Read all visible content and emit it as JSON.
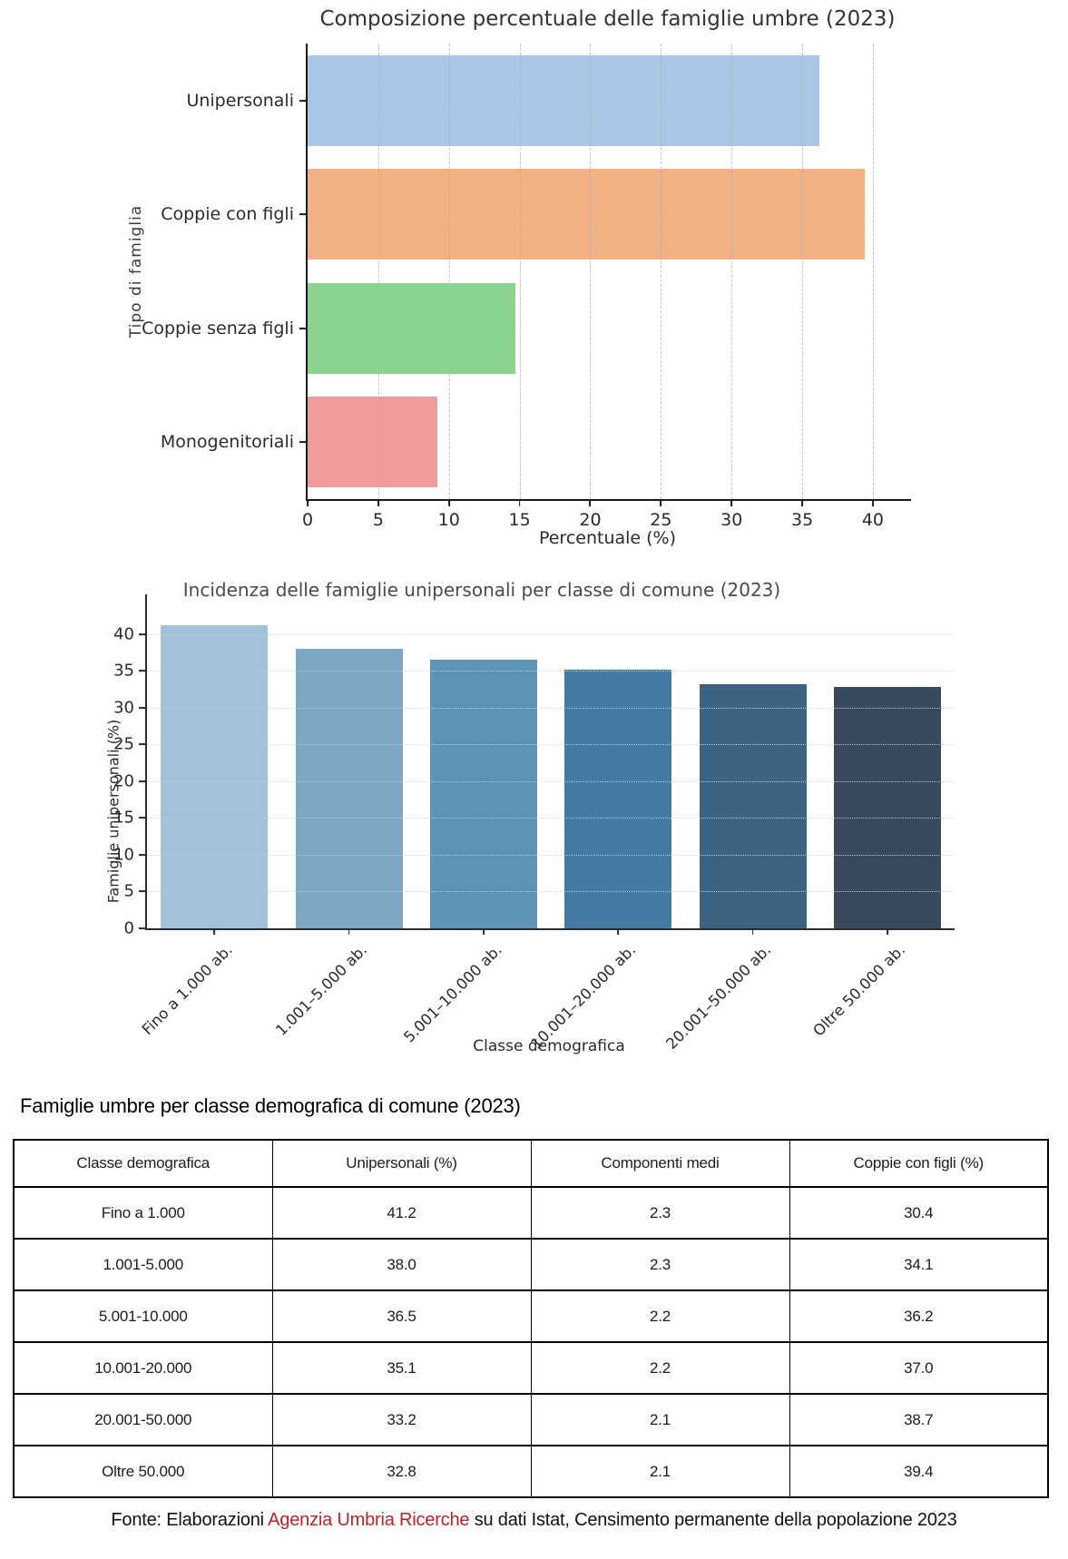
{
  "chart_data": [
    {
      "type": "bar",
      "orientation": "horizontal",
      "title": "Composizione percentuale delle famiglie umbre (2023)",
      "xlabel": "Percentuale (%)",
      "ylabel": "Tipo di famiglia",
      "categories": [
        "Unipersonali",
        "Coppie con figli",
        "Coppie senza figli",
        "Monogenitoriali"
      ],
      "values": [
        36.2,
        39.4,
        14.7,
        9.2
      ],
      "colors": [
        "#a8c6e6",
        "#f1b183",
        "#8bd391",
        "#f09c9a"
      ],
      "xticks": [
        0,
        5,
        10,
        15,
        20,
        25,
        30,
        35,
        40
      ],
      "xlim": [
        0,
        42.7
      ],
      "grid": "vertical-dashed",
      "legend": "none"
    },
    {
      "type": "bar",
      "orientation": "vertical",
      "title": "Incidenza delle famiglie unipersonali per classe di comune (2023)",
      "xlabel": "Classe demografica",
      "ylabel": "Famiglie unipersonali (%)",
      "categories": [
        "Fino a 1.000 ab.",
        "1.001–5.000 ab.",
        "5.001–10.000 ab.",
        "10.001–20.000 ab.",
        "20.001–50.000 ab.",
        "Oltre 50.000 ab."
      ],
      "values": [
        41.2,
        38.0,
        36.5,
        35.1,
        33.2,
        32.8
      ],
      "colors": [
        "#a2c2d9",
        "#7da8c5",
        "#5e93b6",
        "#447aa1",
        "#3d6383",
        "#394a5c"
      ],
      "yticks": [
        0,
        5,
        10,
        15,
        20,
        25,
        30,
        35,
        40
      ],
      "ylim": [
        0,
        45.4
      ],
      "grid": "horizontal-dotted",
      "legend": "none"
    },
    {
      "type": "table",
      "title": "Famiglie umbre per classe demografica di comune (2023)",
      "columns": [
        "Classe demografica",
        "Unipersonali (%)",
        "Componenti medi",
        "Coppie con figli (%)"
      ],
      "rows": [
        [
          "Fino a 1.000",
          "41.2",
          "2.3",
          "30.4"
        ],
        [
          "1.001-5.000",
          "38.0",
          "2.3",
          "34.1"
        ],
        [
          "5.001-10.000",
          "36.5",
          "2.2",
          "36.2"
        ],
        [
          "10.001-20.000",
          "35.1",
          "2.2",
          "37.0"
        ],
        [
          "20.001-50.000",
          "33.2",
          "2.1",
          "38.7"
        ],
        [
          "Oltre 50.000",
          "32.8",
          "2.1",
          "39.4"
        ]
      ]
    }
  ],
  "footer": {
    "prefix": "Fonte: Elaborazioni ",
    "highlight": "Agenzia Umbria Ricerche",
    "suffix": " su dati Istat, Censimento permanente della popolazione 2023",
    "highlight_color": "#c0202a"
  }
}
